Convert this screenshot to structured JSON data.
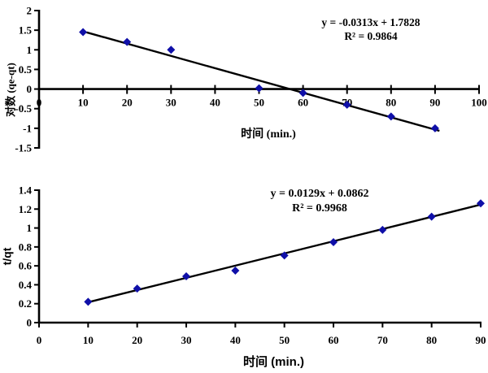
{
  "page": {
    "background": "#ffffff"
  },
  "colors": {
    "marker": "#0f0fa8",
    "axis": "#000000",
    "trendline": "#000000",
    "text": "#000000"
  },
  "chart_data": [
    {
      "id": "pseudo-first-order",
      "type": "scatter",
      "title": "",
      "xlabel": "时间 (min.)",
      "ylabel": "对数 (qe-qt)",
      "x": [
        10,
        20,
        30,
        50,
        60,
        70,
        80,
        90
      ],
      "y": [
        1.45,
        1.2,
        1.0,
        0.02,
        -0.1,
        -0.4,
        -0.7,
        -1.0
      ],
      "trendline": {
        "slope": -0.0313,
        "intercept": 1.7828,
        "x_start": 10.8,
        "x_end": 91
      },
      "equation": "y = -0.0313x + 1.7828",
      "r_squared": "R² = 0.9864",
      "xlim": [
        0,
        100
      ],
      "ylim": [
        -1.5,
        2
      ],
      "x_ticks": [
        0,
        10,
        20,
        30,
        40,
        50,
        60,
        70,
        80,
        90,
        100
      ],
      "x_tick_labels": [
        "0",
        "10",
        "20",
        "30",
        "40",
        "50",
        "60",
        "70",
        "80",
        "90",
        "100"
      ],
      "y_ticks": [
        -1.5,
        -1,
        -0.5,
        0,
        0.5,
        1,
        1.5,
        2
      ],
      "y_tick_labels": [
        "-1.5",
        "-1",
        "-0.5",
        "0",
        "0.5",
        "1",
        "1.5",
        "2"
      ],
      "x_axis_at_y": 0,
      "x_tick_style": "cross",
      "marker": "diamond",
      "grid": false,
      "legend": "none"
    },
    {
      "id": "pseudo-second-order",
      "type": "scatter",
      "title": "",
      "xlabel": "时间 (min.)",
      "ylabel": "t/qt",
      "x": [
        10,
        20,
        30,
        40,
        50,
        60,
        70,
        80,
        90
      ],
      "y": [
        0.22,
        0.36,
        0.49,
        0.55,
        0.71,
        0.85,
        0.98,
        1.12,
        1.26
      ],
      "trendline": {
        "slope": 0.0129,
        "intercept": 0.0862,
        "x_start": 10,
        "x_end": 90.3
      },
      "equation": "y = 0.0129x + 0.0862",
      "r_squared": "R² = 0.9968",
      "xlim": [
        0,
        90
      ],
      "ylim": [
        0,
        1.4
      ],
      "x_ticks": [
        0,
        10,
        20,
        30,
        40,
        50,
        60,
        70,
        80,
        90
      ],
      "x_tick_labels": [
        "0",
        "10",
        "20",
        "30",
        "40",
        "50",
        "60",
        "70",
        "80",
        "90"
      ],
      "y_ticks": [
        0,
        0.2,
        0.4,
        0.6,
        0.8,
        1.0,
        1.2,
        1.4
      ],
      "y_tick_labels": [
        "0",
        "0.2",
        "0.4",
        "0.6",
        "0.8",
        "1",
        "1.2",
        "1.4"
      ],
      "x_axis_at_y": 0,
      "x_tick_style": "outside",
      "marker": "diamond",
      "grid": false,
      "legend": "none"
    }
  ]
}
